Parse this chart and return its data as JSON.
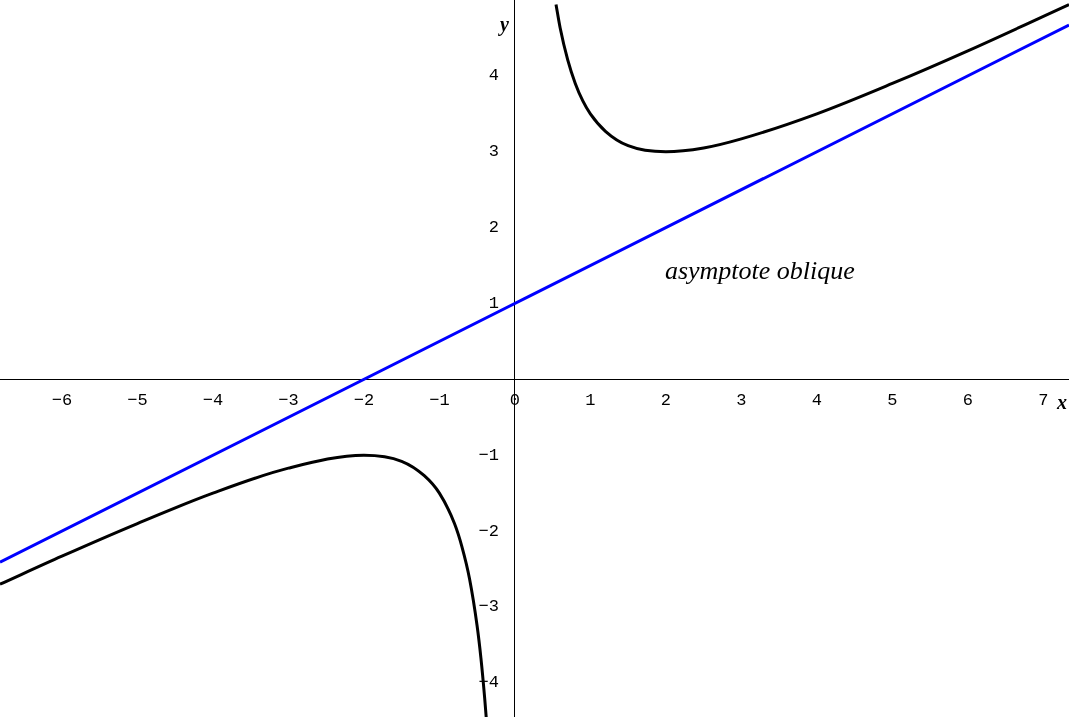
{
  "chart_data": {
    "type": "line",
    "xlabel": "x",
    "ylabel": "y",
    "xlim": [
      -6.82,
      7.34
    ],
    "ylim": [
      -4.45,
      5.0
    ],
    "xticks": [
      -6,
      -5,
      -4,
      -3,
      -2,
      -1,
      0,
      1,
      2,
      3,
      4,
      5,
      6,
      7
    ],
    "yticks": [
      -4,
      -3,
      -2,
      -1,
      1,
      2,
      3,
      4
    ],
    "grid": false,
    "legend": false,
    "marker": "none",
    "line_style": "solid",
    "series": [
      {
        "color": "#000000",
        "x": [
          -6.82,
          -6,
          -5,
          -4,
          -3,
          -2,
          -1.5,
          -1.2,
          -1,
          -0.8,
          -0.7,
          -0.6,
          -0.5,
          -0.45,
          -0.4,
          -0.38,
          0,
          0.545,
          0.6,
          0.7,
          0.8,
          0.9,
          1,
          1.2,
          1.5,
          2,
          2.5,
          3,
          4,
          5,
          6,
          7.34
        ],
        "values": [
          -2.7,
          -2.33,
          -1.9,
          -1.5,
          -1.17,
          -1,
          -1.08,
          -1.27,
          -1.5,
          -1.9,
          -2.21,
          -2.63,
          -3.25,
          -3.67,
          -4.2,
          -4.45,
          null,
          4.94,
          4.63,
          4.21,
          3.9,
          3.67,
          3.5,
          3.27,
          3.08,
          3,
          3.05,
          3.17,
          3.5,
          3.9,
          4.33,
          4.94
        ]
      },
      {
        "color": "#0000ff",
        "x": [
          -6.82,
          7.34
        ],
        "values": [
          -2.41,
          4.67
        ]
      }
    ],
    "annotations": [
      "asymptote oblique"
    ]
  }
}
